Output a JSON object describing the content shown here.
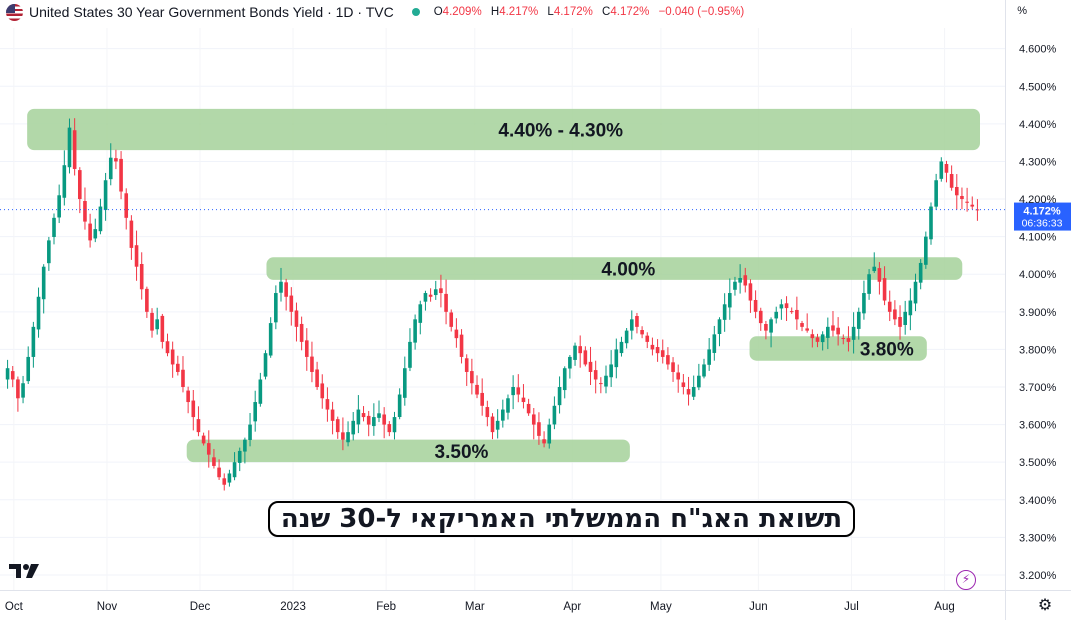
{
  "header": {
    "title": "United States 30 Year Government Bonds Yield · 1D · TVC",
    "open_label": "O",
    "open": "4.209%",
    "high_label": "H",
    "high": "4.217%",
    "low_label": "L",
    "low": "4.172%",
    "close_label": "C",
    "close": "4.172%",
    "change": "−0.040 (−0.95%)",
    "axis_unit": "%"
  },
  "overlay_title": "תשואת האג\"ח הממשלתי האמריקאי ל-30 שנה",
  "chart_data": {
    "type": "candlestick",
    "y_range": [
      3.16,
      4.655
    ],
    "y_ticks": [
      3.2,
      3.3,
      3.4,
      3.5,
      3.6,
      3.7,
      3.8,
      3.9,
      4.0,
      4.1,
      4.2,
      4.3,
      4.4,
      4.5,
      4.6
    ],
    "y_tick_labels": [
      "3.200%",
      "3.300%",
      "3.400%",
      "3.500%",
      "3.600%",
      "3.700%",
      "3.800%",
      "3.900%",
      "4.000%",
      "4.100%",
      "4.200%",
      "4.300%",
      "4.400%",
      "4.500%",
      "4.600%"
    ],
    "x_range": [
      0,
      220
    ],
    "x_labels": [
      {
        "day": 2,
        "text": "Oct"
      },
      {
        "day": 23,
        "text": "Nov"
      },
      {
        "day": 44,
        "text": "Dec"
      },
      {
        "day": 65,
        "text": "2023"
      },
      {
        "day": 86,
        "text": "Feb"
      },
      {
        "day": 106,
        "text": "Mar"
      },
      {
        "day": 128,
        "text": "Apr"
      },
      {
        "day": 148,
        "text": "May"
      },
      {
        "day": 170,
        "text": "Jun"
      },
      {
        "day": 191,
        "text": "Jul"
      },
      {
        "day": 212,
        "text": "Aug"
      }
    ],
    "last_price": 4.172,
    "last_price_label": "4.172%",
    "countdown": "06:36:33",
    "zones": [
      {
        "label": "4.40% - 4.30%",
        "from": 4.33,
        "to": 4.44,
        "day_start": 5,
        "day_end": 220
      },
      {
        "label": "4.00%",
        "from": 3.985,
        "to": 4.045,
        "day_start": 59,
        "day_end": 216
      },
      {
        "label": "3.80%",
        "from": 3.77,
        "to": 3.835,
        "day_start": 168,
        "day_end": 208
      },
      {
        "label": "3.50%",
        "from": 3.5,
        "to": 3.56,
        "day_start": 41,
        "day_end": 141
      }
    ],
    "closes": [
      3.75,
      3.72,
      3.67,
      3.71,
      3.78,
      3.86,
      3.94,
      4.02,
      4.09,
      4.15,
      4.21,
      4.29,
      4.39,
      4.28,
      4.2,
      4.14,
      4.09,
      4.12,
      4.18,
      4.25,
      4.31,
      4.3,
      4.22,
      4.15,
      4.07,
      4.02,
      3.96,
      3.9,
      3.85,
      3.88,
      3.82,
      3.79,
      3.76,
      3.74,
      3.7,
      3.66,
      3.62,
      3.58,
      3.55,
      3.52,
      3.49,
      3.46,
      3.44,
      3.47,
      3.5,
      3.53,
      3.56,
      3.6,
      3.66,
      3.72,
      3.79,
      3.87,
      3.95,
      3.98,
      3.94,
      3.9,
      3.86,
      3.82,
      3.78,
      3.74,
      3.7,
      3.67,
      3.64,
      3.61,
      3.58,
      3.56,
      3.58,
      3.61,
      3.64,
      3.62,
      3.6,
      3.62,
      3.63,
      3.6,
      3.58,
      3.62,
      3.68,
      3.75,
      3.82,
      3.88,
      3.92,
      3.95,
      3.94,
      3.96,
      3.95,
      3.9,
      3.86,
      3.83,
      3.78,
      3.74,
      3.71,
      3.68,
      3.65,
      3.62,
      3.58,
      3.61,
      3.64,
      3.67,
      3.7,
      3.68,
      3.66,
      3.63,
      3.6,
      3.57,
      3.55,
      3.6,
      3.65,
      3.7,
      3.75,
      3.78,
      3.81,
      3.79,
      3.76,
      3.74,
      3.72,
      3.71,
      3.73,
      3.76,
      3.8,
      3.82,
      3.85,
      3.88,
      3.86,
      3.84,
      3.82,
      3.8,
      3.79,
      3.78,
      3.76,
      3.74,
      3.72,
      3.7,
      3.68,
      3.7,
      3.73,
      3.76,
      3.8,
      3.84,
      3.88,
      3.92,
      3.95,
      3.98,
      3.99,
      3.97,
      3.93,
      3.9,
      3.87,
      3.85,
      3.88,
      3.9,
      3.92,
      3.91,
      3.9,
      3.88,
      3.86,
      3.85,
      3.83,
      3.82,
      3.84,
      3.86,
      3.85,
      3.84,
      3.83,
      3.82,
      3.86,
      3.9,
      3.95,
      4.0,
      4.02,
      3.98,
      3.93,
      3.9,
      3.88,
      3.86,
      3.9,
      3.93,
      3.98,
      4.03,
      4.1,
      4.18,
      4.25,
      4.3,
      4.27,
      4.23,
      4.21,
      4.2,
      4.19,
      4.18,
      4.17
    ]
  }
}
